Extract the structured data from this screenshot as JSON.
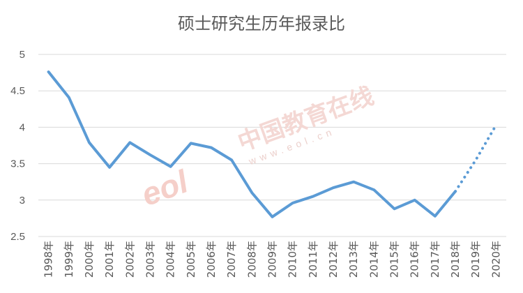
{
  "chart_data": {
    "type": "line",
    "title": "硕士研究生历年报录比",
    "categories": [
      "1998年",
      "1999年",
      "2000年",
      "2001年",
      "2002年",
      "2003年",
      "2004年",
      "2005年",
      "2006年",
      "2007年",
      "2008年",
      "2009年",
      "2010年",
      "2011年",
      "2012年",
      "2013年",
      "2014年",
      "2015年",
      "2016年",
      "2017年",
      "2018年",
      "2019年",
      "2020年"
    ],
    "series": [
      {
        "values": [
          4.76,
          4.41,
          3.79,
          3.45,
          3.79,
          3.62,
          3.46,
          3.78,
          3.72,
          3.55,
          3.1,
          2.77,
          2.96,
          3.05,
          3.17,
          3.25,
          3.14,
          2.88,
          3.0,
          2.78,
          3.12,
          null,
          null
        ],
        "projected": [
          null,
          null,
          null,
          null,
          null,
          null,
          null,
          null,
          null,
          null,
          null,
          null,
          null,
          null,
          null,
          null,
          null,
          null,
          null,
          null,
          3.12,
          3.55,
          4.03
        ]
      }
    ],
    "ylim": [
      2.5,
      5
    ],
    "yticks": [
      "2.5",
      "3",
      "3.5",
      "4",
      "4.5",
      "5"
    ],
    "grid": true,
    "legend": "none",
    "color": "#5b9bd5"
  },
  "watermark": {
    "logo": "eol",
    "cn": "中国教育在线",
    "en": "www.eol.cn"
  }
}
